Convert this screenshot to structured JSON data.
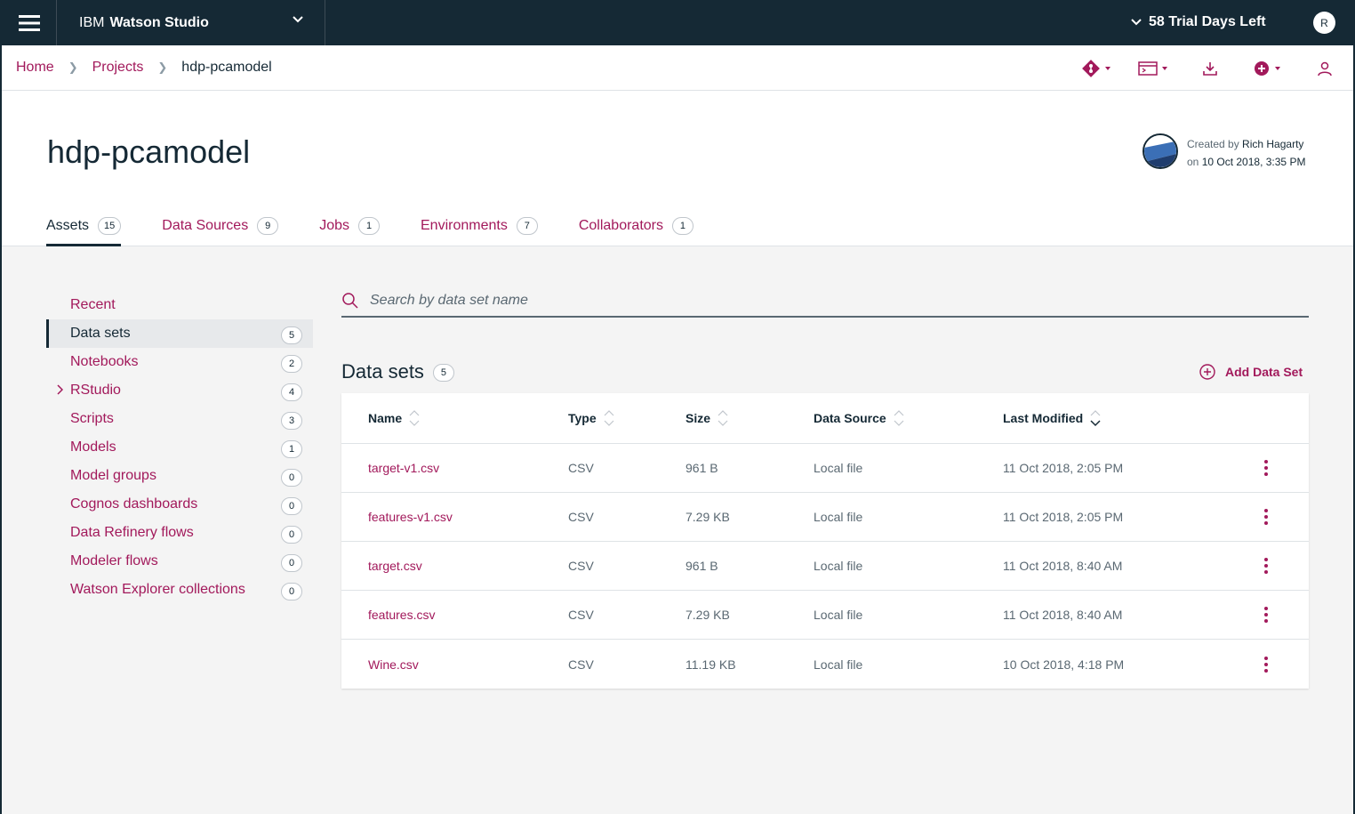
{
  "topbar": {
    "product_prefix": "IBM",
    "product_name": "Watson Studio",
    "trial_text": "58 Trial Days Left",
    "user_initial": "R"
  },
  "breadcrumb": {
    "home": "Home",
    "projects": "Projects",
    "current": "hdp-pcamodel"
  },
  "toolbar_icons": [
    "git-icon",
    "terminal-icon",
    "download-icon",
    "add-icon",
    "user-icon"
  ],
  "project": {
    "title": "hdp-pcamodel",
    "created_by_label": "Created by",
    "created_by_name": "Rich Hagarty",
    "created_on_label": "on",
    "created_on_date": "10 Oct 2018, 3:35 PM"
  },
  "tabs": [
    {
      "label": "Assets",
      "count": "15"
    },
    {
      "label": "Data Sources",
      "count": "9"
    },
    {
      "label": "Jobs",
      "count": "1"
    },
    {
      "label": "Environments",
      "count": "7"
    },
    {
      "label": "Collaborators",
      "count": "1"
    }
  ],
  "sidebar": {
    "items": [
      {
        "label": "Recent",
        "count": ""
      },
      {
        "label": "Data sets",
        "count": "5"
      },
      {
        "label": "Notebooks",
        "count": "2"
      },
      {
        "label": "RStudio",
        "count": "4"
      },
      {
        "label": "Scripts",
        "count": "3"
      },
      {
        "label": "Models",
        "count": "1"
      },
      {
        "label": "Model groups",
        "count": "0"
      },
      {
        "label": "Cognos dashboards",
        "count": "0"
      },
      {
        "label": "Data Refinery flows",
        "count": "0"
      },
      {
        "label": "Modeler flows",
        "count": "0"
      },
      {
        "label": "Watson Explorer collections",
        "count": "0"
      }
    ]
  },
  "search": {
    "placeholder": "Search by data set name"
  },
  "datasets": {
    "title": "Data sets",
    "count": "5",
    "add_label": "Add Data Set",
    "columns": [
      "Name",
      "Type",
      "Size",
      "Data Source",
      "Last Modified"
    ],
    "rows": [
      {
        "name": "target-v1.csv",
        "type": "CSV",
        "size": "961 B",
        "source": "Local file",
        "modified": "11 Oct 2018, 2:05 PM"
      },
      {
        "name": "features-v1.csv",
        "type": "CSV",
        "size": "7.29 KB",
        "source": "Local file",
        "modified": "11 Oct 2018, 2:05 PM"
      },
      {
        "name": "target.csv",
        "type": "CSV",
        "size": "961 B",
        "source": "Local file",
        "modified": "11 Oct 2018, 8:40 AM"
      },
      {
        "name": "features.csv",
        "type": "CSV",
        "size": "7.29 KB",
        "source": "Local file",
        "modified": "11 Oct 2018, 8:40 AM"
      },
      {
        "name": "Wine.csv",
        "type": "CSV",
        "size": "11.19 KB",
        "source": "Local file",
        "modified": "10 Oct 2018, 4:18 PM"
      }
    ]
  },
  "colors": {
    "topbar_bg": "#152935",
    "accent": "#a2195b",
    "text": "#152935",
    "muted": "#5a6872"
  }
}
